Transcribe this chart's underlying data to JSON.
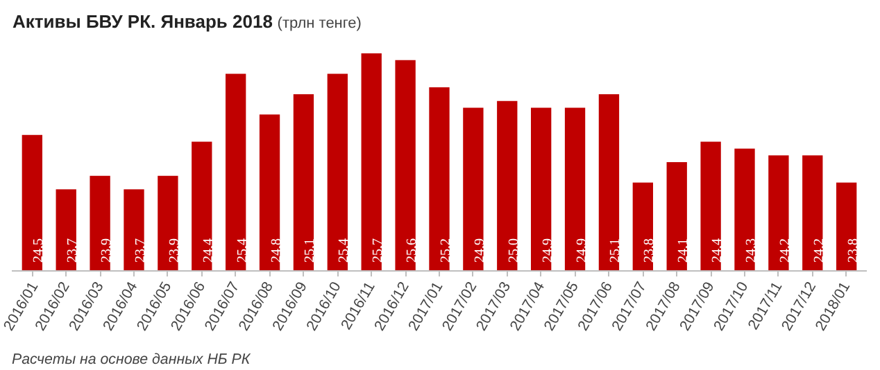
{
  "chart_data": {
    "type": "bar",
    "title": "Активы БВУ РК. Январь 2018",
    "subtitle": "(трлн тенге)",
    "categories": [
      "2016/01",
      "2016/02",
      "2016/03",
      "2016/04",
      "2016/05",
      "2016/06",
      "2016/07",
      "2016/08",
      "2016/09",
      "2016/10",
      "2016/11",
      "2016/12",
      "2017/01",
      "2017/02",
      "2017/03",
      "2017/04",
      "2017/05",
      "2017/06",
      "2017/07",
      "2017/08",
      "2017/09",
      "2017/10",
      "2017/11",
      "2017/12",
      "2018/01"
    ],
    "values": [
      24.5,
      23.7,
      23.9,
      23.7,
      23.9,
      24.4,
      25.4,
      24.8,
      25.1,
      25.4,
      25.7,
      25.6,
      25.2,
      24.9,
      25.0,
      24.9,
      24.9,
      25.1,
      23.8,
      24.1,
      24.4,
      24.3,
      24.2,
      24.2,
      23.8
    ],
    "value_labels": [
      "24,5",
      "23,7",
      "23,9",
      "23,7",
      "23,9",
      "24,4",
      "25,4",
      "24,8",
      "25,1",
      "25,4",
      "25,7",
      "25,6",
      "25,2",
      "24,9",
      "25,0",
      "24,9",
      "24,9",
      "25,1",
      "23,8",
      "24,1",
      "24,4",
      "24,3",
      "24,2",
      "24,2",
      "23,8"
    ],
    "color": "#c00000",
    "ylim": [
      22.5,
      25.7
    ],
    "tick_labels": "x",
    "grid": false,
    "annotations": [
      "Расчеты на основе данных НБ РК"
    ]
  }
}
